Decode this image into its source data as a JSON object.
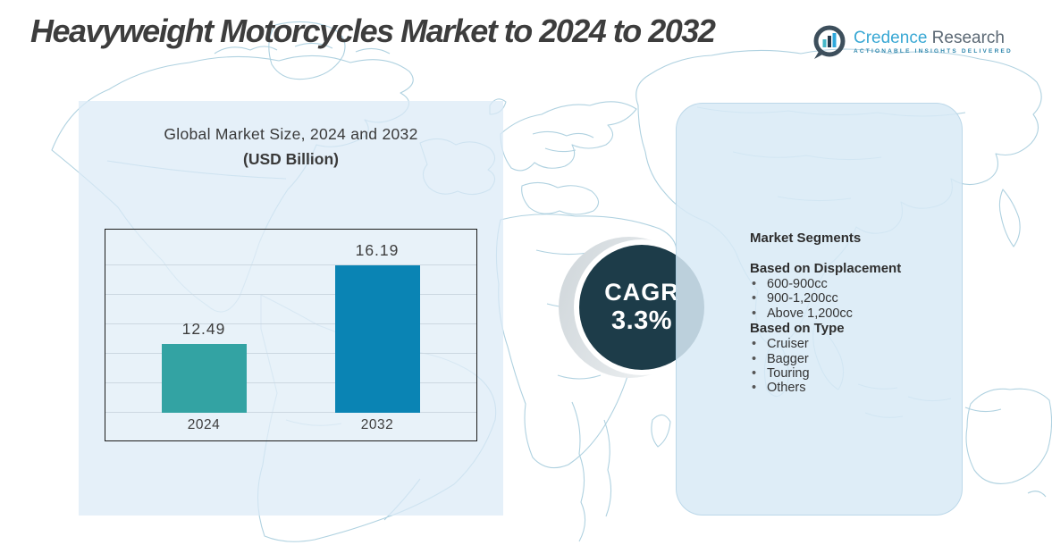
{
  "header": {
    "title": "Heavyweight Motorcycles Market to 2024 to 2032",
    "logo": {
      "brand_primary": "Credence",
      "brand_secondary": " Research",
      "tagline": "ACTIONABLE INSIGHTS DELIVERED"
    }
  },
  "chart_panel": {
    "title_line1": "Global Market Size, 2024 and 2032",
    "title_line2": "(USD Billion)"
  },
  "chart_data": {
    "type": "bar",
    "title": "Global Market Size, 2024 and 2032 (USD Billion)",
    "categories": [
      "2024",
      "2032"
    ],
    "values": [
      12.49,
      16.19
    ],
    "value_labels": [
      "12.49",
      "16.19"
    ],
    "unit": "USD Billion",
    "bar_colors": [
      "#33a3a3",
      "#0a84b4"
    ],
    "axis_min": 9.3,
    "axis_max": 17.8,
    "gridlines": 6,
    "grid": true,
    "legend": "none"
  },
  "cagr_badge": {
    "label": "CAGR",
    "value": "3.3%"
  },
  "segments_panel": {
    "title": "Market Segments",
    "groups": [
      {
        "heading": "Based on Displacement",
        "items": [
          "600-900cc",
          "900-1,200cc",
          "Above 1,200cc"
        ]
      },
      {
        "heading": "Based on Type",
        "items": [
          "Cruiser",
          "Bagger",
          "Touring",
          "Others"
        ]
      }
    ]
  },
  "colors": {
    "bar_2024": "#33a3a3",
    "bar_2032": "#0a84b4",
    "cagr_circle": "#1d3c49",
    "left_panel_bg": "#dbeaf7",
    "right_panel_bg": "#d8eaf6",
    "map_stroke": "#a7cddd",
    "title_text": "#3d3d3d",
    "brand_blue": "#39a8d4",
    "brand_gray": "#5b6874"
  }
}
